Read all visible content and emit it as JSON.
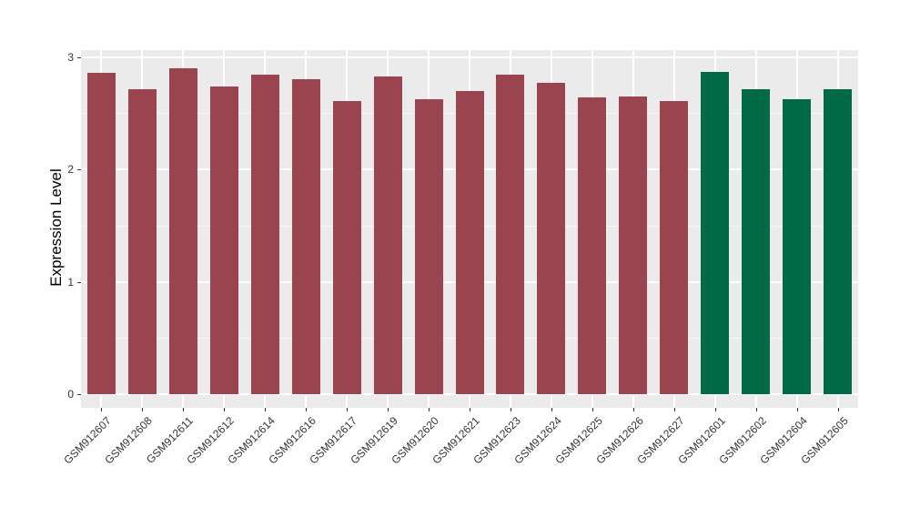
{
  "chart_data": {
    "type": "bar",
    "title": "",
    "xlabel": "",
    "ylabel": "Expression Level",
    "ylim": [
      0,
      3
    ],
    "yticks": [
      0,
      1,
      2,
      3
    ],
    "yminor": [
      0.5,
      1.5,
      2.5
    ],
    "grid": "on",
    "legend": "none",
    "bars": [
      {
        "label": "GSM912607",
        "value": 2.86,
        "color": "#9A4450"
      },
      {
        "label": "GSM912608",
        "value": 2.72,
        "color": "#9A4450"
      },
      {
        "label": "GSM912611",
        "value": 2.9,
        "color": "#9A4450"
      },
      {
        "label": "GSM912612",
        "value": 2.74,
        "color": "#9A4450"
      },
      {
        "label": "GSM912614",
        "value": 2.85,
        "color": "#9A4450"
      },
      {
        "label": "GSM912616",
        "value": 2.81,
        "color": "#9A4450"
      },
      {
        "label": "GSM912617",
        "value": 2.61,
        "color": "#9A4450"
      },
      {
        "label": "GSM912619",
        "value": 2.83,
        "color": "#9A4450"
      },
      {
        "label": "GSM912620",
        "value": 2.63,
        "color": "#9A4450"
      },
      {
        "label": "GSM912621",
        "value": 2.7,
        "color": "#9A4450"
      },
      {
        "label": "GSM912623",
        "value": 2.85,
        "color": "#9A4450"
      },
      {
        "label": "GSM912624",
        "value": 2.77,
        "color": "#9A4450"
      },
      {
        "label": "GSM912625",
        "value": 2.64,
        "color": "#9A4450"
      },
      {
        "label": "GSM912626",
        "value": 2.65,
        "color": "#9A4450"
      },
      {
        "label": "GSM912627",
        "value": 2.61,
        "color": "#9A4450"
      },
      {
        "label": "GSM912601",
        "value": 2.87,
        "color": "#006946"
      },
      {
        "label": "GSM912602",
        "value": 2.72,
        "color": "#006946"
      },
      {
        "label": "GSM912604",
        "value": 2.63,
        "color": "#006946"
      },
      {
        "label": "GSM912605",
        "value": 2.72,
        "color": "#006946"
      }
    ]
  },
  "colors": {
    "group1_bar": "#9A4450",
    "group2_bar": "#006946",
    "panel_background": "#EBEBEB",
    "gridline": "#FFFFFF",
    "axis_text": "#333333",
    "axis_title": "#000000"
  }
}
